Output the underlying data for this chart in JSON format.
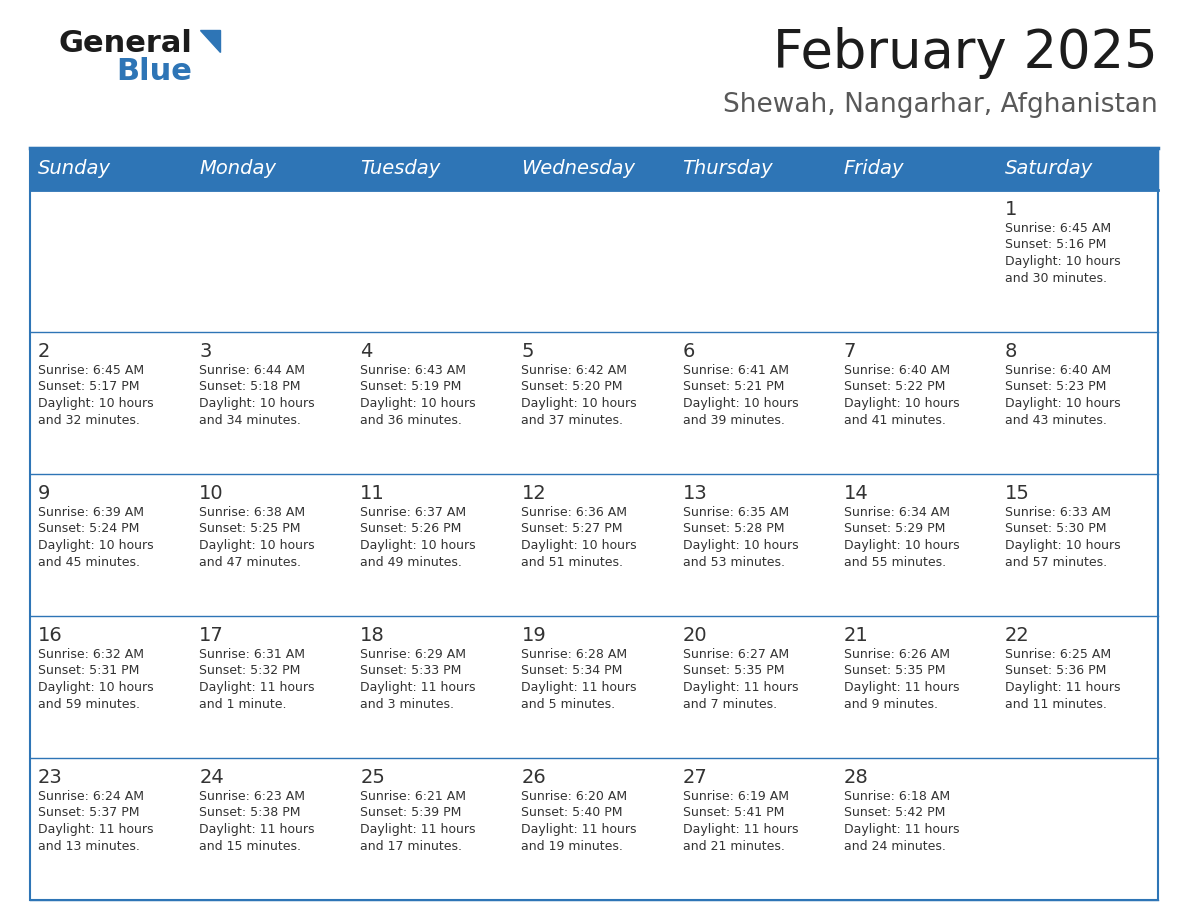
{
  "title": "February 2025",
  "subtitle": "Shewah, Nangarhar, Afghanistan",
  "header_color": "#2E75B6",
  "header_text_color": "#FFFFFF",
  "divider_color": "#2E75B6",
  "cell_bg": "#FFFFFF",
  "day_headers": [
    "Sunday",
    "Monday",
    "Tuesday",
    "Wednesday",
    "Thursday",
    "Friday",
    "Saturday"
  ],
  "days": [
    {
      "day": 1,
      "col": 6,
      "row": 0,
      "sunrise": "6:45 AM",
      "sunset": "5:16 PM",
      "daylight_hours": 10,
      "daylight_minutes": 30
    },
    {
      "day": 2,
      "col": 0,
      "row": 1,
      "sunrise": "6:45 AM",
      "sunset": "5:17 PM",
      "daylight_hours": 10,
      "daylight_minutes": 32
    },
    {
      "day": 3,
      "col": 1,
      "row": 1,
      "sunrise": "6:44 AM",
      "sunset": "5:18 PM",
      "daylight_hours": 10,
      "daylight_minutes": 34
    },
    {
      "day": 4,
      "col": 2,
      "row": 1,
      "sunrise": "6:43 AM",
      "sunset": "5:19 PM",
      "daylight_hours": 10,
      "daylight_minutes": 36
    },
    {
      "day": 5,
      "col": 3,
      "row": 1,
      "sunrise": "6:42 AM",
      "sunset": "5:20 PM",
      "daylight_hours": 10,
      "daylight_minutes": 37
    },
    {
      "day": 6,
      "col": 4,
      "row": 1,
      "sunrise": "6:41 AM",
      "sunset": "5:21 PM",
      "daylight_hours": 10,
      "daylight_minutes": 39
    },
    {
      "day": 7,
      "col": 5,
      "row": 1,
      "sunrise": "6:40 AM",
      "sunset": "5:22 PM",
      "daylight_hours": 10,
      "daylight_minutes": 41
    },
    {
      "day": 8,
      "col": 6,
      "row": 1,
      "sunrise": "6:40 AM",
      "sunset": "5:23 PM",
      "daylight_hours": 10,
      "daylight_minutes": 43
    },
    {
      "day": 9,
      "col": 0,
      "row": 2,
      "sunrise": "6:39 AM",
      "sunset": "5:24 PM",
      "daylight_hours": 10,
      "daylight_minutes": 45
    },
    {
      "day": 10,
      "col": 1,
      "row": 2,
      "sunrise": "6:38 AM",
      "sunset": "5:25 PM",
      "daylight_hours": 10,
      "daylight_minutes": 47
    },
    {
      "day": 11,
      "col": 2,
      "row": 2,
      "sunrise": "6:37 AM",
      "sunset": "5:26 PM",
      "daylight_hours": 10,
      "daylight_minutes": 49
    },
    {
      "day": 12,
      "col": 3,
      "row": 2,
      "sunrise": "6:36 AM",
      "sunset": "5:27 PM",
      "daylight_hours": 10,
      "daylight_minutes": 51
    },
    {
      "day": 13,
      "col": 4,
      "row": 2,
      "sunrise": "6:35 AM",
      "sunset": "5:28 PM",
      "daylight_hours": 10,
      "daylight_minutes": 53
    },
    {
      "day": 14,
      "col": 5,
      "row": 2,
      "sunrise": "6:34 AM",
      "sunset": "5:29 PM",
      "daylight_hours": 10,
      "daylight_minutes": 55
    },
    {
      "day": 15,
      "col": 6,
      "row": 2,
      "sunrise": "6:33 AM",
      "sunset": "5:30 PM",
      "daylight_hours": 10,
      "daylight_minutes": 57
    },
    {
      "day": 16,
      "col": 0,
      "row": 3,
      "sunrise": "6:32 AM",
      "sunset": "5:31 PM",
      "daylight_hours": 10,
      "daylight_minutes": 59
    },
    {
      "day": 17,
      "col": 1,
      "row": 3,
      "sunrise": "6:31 AM",
      "sunset": "5:32 PM",
      "daylight_hours": 11,
      "daylight_minutes": 1
    },
    {
      "day": 18,
      "col": 2,
      "row": 3,
      "sunrise": "6:29 AM",
      "sunset": "5:33 PM",
      "daylight_hours": 11,
      "daylight_minutes": 3
    },
    {
      "day": 19,
      "col": 3,
      "row": 3,
      "sunrise": "6:28 AM",
      "sunset": "5:34 PM",
      "daylight_hours": 11,
      "daylight_minutes": 5
    },
    {
      "day": 20,
      "col": 4,
      "row": 3,
      "sunrise": "6:27 AM",
      "sunset": "5:35 PM",
      "daylight_hours": 11,
      "daylight_minutes": 7
    },
    {
      "day": 21,
      "col": 5,
      "row": 3,
      "sunrise": "6:26 AM",
      "sunset": "5:35 PM",
      "daylight_hours": 11,
      "daylight_minutes": 9
    },
    {
      "day": 22,
      "col": 6,
      "row": 3,
      "sunrise": "6:25 AM",
      "sunset": "5:36 PM",
      "daylight_hours": 11,
      "daylight_minutes": 11
    },
    {
      "day": 23,
      "col": 0,
      "row": 4,
      "sunrise": "6:24 AM",
      "sunset": "5:37 PM",
      "daylight_hours": 11,
      "daylight_minutes": 13
    },
    {
      "day": 24,
      "col": 1,
      "row": 4,
      "sunrise": "6:23 AM",
      "sunset": "5:38 PM",
      "daylight_hours": 11,
      "daylight_minutes": 15
    },
    {
      "day": 25,
      "col": 2,
      "row": 4,
      "sunrise": "6:21 AM",
      "sunset": "5:39 PM",
      "daylight_hours": 11,
      "daylight_minutes": 17
    },
    {
      "day": 26,
      "col": 3,
      "row": 4,
      "sunrise": "6:20 AM",
      "sunset": "5:40 PM",
      "daylight_hours": 11,
      "daylight_minutes": 19
    },
    {
      "day": 27,
      "col": 4,
      "row": 4,
      "sunrise": "6:19 AM",
      "sunset": "5:41 PM",
      "daylight_hours": 11,
      "daylight_minutes": 21
    },
    {
      "day": 28,
      "col": 5,
      "row": 4,
      "sunrise": "6:18 AM",
      "sunset": "5:42 PM",
      "daylight_hours": 11,
      "daylight_minutes": 24
    }
  ],
  "num_rows": 5,
  "num_cols": 7
}
